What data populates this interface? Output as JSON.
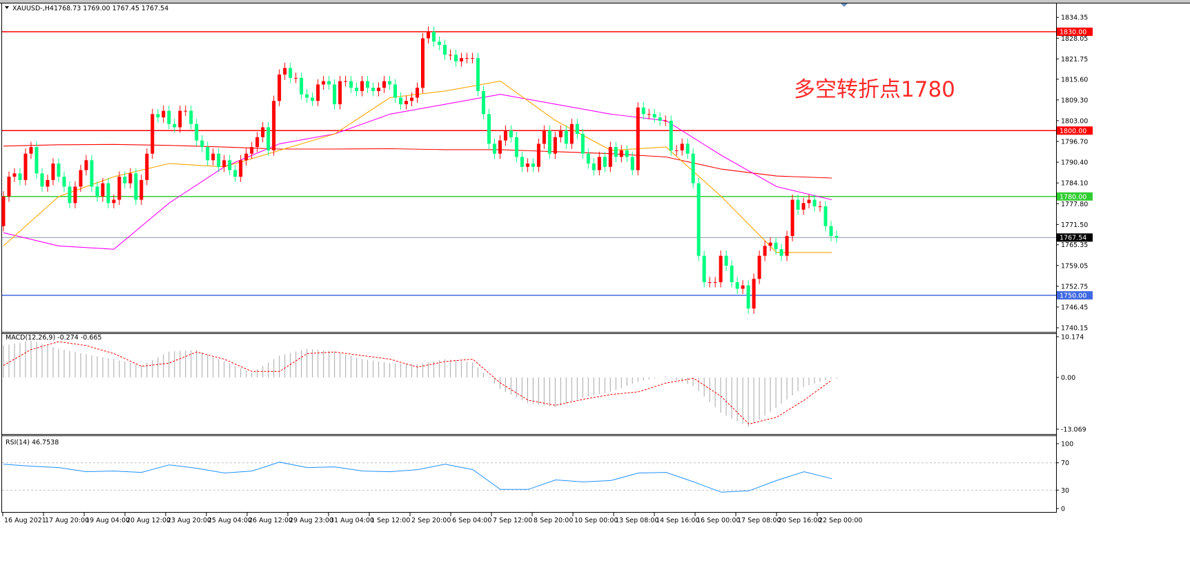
{
  "header": {
    "symbol_label": "XAUUSD-,H4",
    "ohlc_text": "1768.73 1769.00 1767.45 1767.54"
  },
  "annotation": {
    "text": "多空转折点1780",
    "color": "#ff2a2a"
  },
  "colors": {
    "up": "#ff0000",
    "down": "#00ff7f",
    "ma_fast": "#ffa500",
    "ma_mid": "#ff00ff",
    "ma_slow": "#ff0000",
    "macd_hist": "#b4b4b4",
    "macd_signal": "#ff0000",
    "rsi": "#1e90ff"
  },
  "price_axis": {
    "ticks": [
      "1834.35",
      "1828.05",
      "1821.75",
      "1815.60",
      "1809.30",
      "1803.00",
      "1796.70",
      "1790.40",
      "1784.10",
      "1777.80",
      "1771.50",
      "1765.35",
      "1759.05",
      "1752.75",
      "1746.45",
      "1740.15"
    ],
    "levels": [
      {
        "value": 1830,
        "label": "1830.00",
        "color": "#ff0000"
      },
      {
        "value": 1800,
        "label": "1800.00",
        "color": "#ff0000"
      },
      {
        "value": 1780,
        "label": "1780.00",
        "color": "#32cd32"
      },
      {
        "value": 1750,
        "label": "1750.00",
        "color": "#4169e1"
      }
    ],
    "current": {
      "value": 1767.54,
      "label": "1767.54",
      "color": "#000000"
    }
  },
  "time_axis": {
    "labels": [
      "16 Aug 2021",
      "17 Aug 20:00",
      "19 Aug 04:00",
      "20 Aug 12:00",
      "23 Aug 20:00",
      "25 Aug 04:00",
      "26 Aug 12:00",
      "29 Aug 23:00",
      "31 Aug 04:00",
      "1 Sep 12:00",
      "2 Sep 20:00",
      "6 Sep 04:00",
      "7 Sep 12:00",
      "8 Sep 20:00",
      "10 Sep 00:00",
      "13 Sep 08:00",
      "14 Sep 16:00",
      "16 Sep 00:00",
      "17 Sep 08:00",
      "20 Sep 16:00",
      "22 Sep 00:00"
    ]
  },
  "chart_data": [
    {
      "type": "candlestick",
      "title": "XAUUSD-,H4",
      "ylim": [
        1740.15,
        1834.35
      ],
      "first_open": 1771,
      "closes": [
        1780,
        1786,
        1787,
        1785,
        1793,
        1795,
        1787,
        1783,
        1785,
        1790,
        1786,
        1783,
        1778,
        1783,
        1788,
        1791,
        1783,
        1780,
        1784,
        1778,
        1779,
        1786,
        1784,
        1787,
        1779,
        1785,
        1793,
        1805,
        1804,
        1806,
        1802,
        1801,
        1806,
        1806,
        1802,
        1797,
        1795,
        1791,
        1793,
        1789,
        1791,
        1788,
        1786,
        1791,
        1793,
        1795,
        1798,
        1801,
        1794,
        1809,
        1817,
        1819,
        1816,
        1816,
        1811,
        1810,
        1809,
        1814,
        1815,
        1814,
        1808,
        1815,
        1815,
        1813,
        1812,
        1815,
        1813,
        1812,
        1813,
        1815,
        1814,
        1810,
        1808,
        1809,
        1810,
        1813,
        1828,
        1830,
        1827,
        1826,
        1823,
        1823,
        1821,
        1822,
        1822,
        1822,
        1812,
        1805,
        1796,
        1793,
        1797,
        1800,
        1798,
        1792,
        1789,
        1790,
        1789,
        1796,
        1800,
        1793,
        1798,
        1800,
        1796,
        1802,
        1799,
        1793,
        1790,
        1788,
        1792,
        1789,
        1795,
        1792,
        1794,
        1792,
        1788,
        1807,
        1805,
        1805,
        1804,
        1803,
        1803,
        1794,
        1794,
        1796,
        1793,
        1784,
        1762,
        1754,
        1754,
        1754,
        1762,
        1759,
        1754,
        1752,
        1753,
        1746,
        1755,
        1762,
        1765,
        1766,
        1764,
        1762,
        1768,
        1779,
        1776,
        1778,
        1779,
        1777,
        1777,
        1771,
        1768,
        1767.54
      ],
      "moving_averages": {
        "fast": [
          1765,
          1780,
          1786,
          1790,
          1789,
          1794,
          1799,
          1810,
          1812,
          1815,
          1803,
          1794,
          1795,
          1780,
          1763,
          1763
        ],
        "mid": [
          1769,
          1765,
          1764,
          1778,
          1789,
          1796,
          1799,
          1805,
          1808,
          1811,
          1808,
          1805,
          1803,
          1792.5,
          1783,
          1779
        ],
        "slow": [
          1795.3,
          1795.7,
          1795.8,
          1795.5,
          1795,
          1794.4,
          1794.4,
          1794.5,
          1794.2,
          1794.2,
          1793.6,
          1793,
          1792,
          1788.3,
          1786.2,
          1785.6
        ]
      },
      "horizontal_lines": [
        1830,
        1800,
        1780,
        1750
      ]
    },
    {
      "type": "bar",
      "title": "MACD(12,26,9) -0.274 -0.665",
      "ylim": [
        -13.069,
        10.174
      ],
      "tick_labels": [
        "10.174",
        "0.00",
        "-13.069"
      ],
      "histogram": [
        8,
        9.3,
        7.2,
        5.8,
        4.6,
        3,
        6.5,
        6.9,
        4,
        1.2,
        5.5,
        7.2,
        6.5,
        4.6,
        3.6,
        3.3,
        4.6,
        3.8,
        -3,
        -6.5,
        -7.5,
        -5,
        -3.6,
        -1,
        0.3,
        -2.2,
        -9,
        -12.5,
        -7.5,
        -2.3,
        -0.274
      ],
      "signal": [
        3,
        7,
        9,
        8,
        6,
        2.8,
        3.6,
        6.4,
        4.6,
        1.5,
        1.5,
        6,
        6.4,
        5.5,
        4.6,
        2.6,
        4,
        4.6,
        -1.4,
        -5.7,
        -7,
        -5.5,
        -4.3,
        -3.6,
        -1.4,
        -0.2,
        -4.8,
        -11.7,
        -10,
        -5.7,
        -0.665
      ]
    },
    {
      "type": "line",
      "title": "RSI(14) 46.7538",
      "ylim": [
        0,
        100
      ],
      "tick_labels": [
        "100",
        "70",
        "30",
        "0"
      ],
      "levels": [
        70,
        30
      ],
      "values": [
        68,
        65,
        63,
        57,
        58,
        56,
        67,
        62,
        55,
        58,
        71,
        63,
        64,
        58,
        57,
        60,
        68,
        60,
        31,
        31,
        45,
        42,
        44,
        55,
        56,
        42,
        27,
        29,
        44,
        57,
        46.75
      ]
    }
  ]
}
